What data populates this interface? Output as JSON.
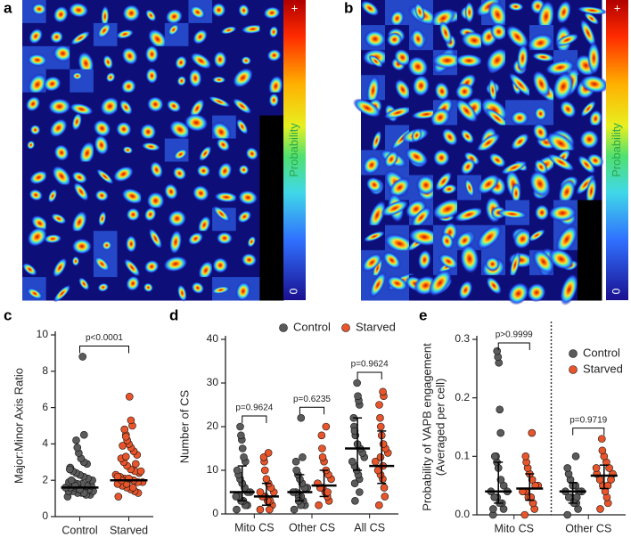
{
  "heatmaps": [
    {
      "label": "a",
      "colorbar_top": "+",
      "colorbar_title": "Probability",
      "colorbar_bottom": "0"
    },
    {
      "label": "b",
      "colorbar_top": "+",
      "colorbar_title": "Probability",
      "colorbar_bottom": "0"
    }
  ],
  "chart_data": [
    {
      "type": "dot",
      "label": "c",
      "ylabel": [
        "Major:Minor Axis Ratio"
      ],
      "categories": [
        "Control",
        "Starved"
      ],
      "ylim": [
        0,
        10
      ],
      "yticks": [
        0,
        2,
        4,
        6,
        8,
        10
      ],
      "groups": [
        {
          "color": "#5b5b5b",
          "median": 1.6,
          "values": [
            1.1,
            1.2,
            1.2,
            1.3,
            1.3,
            1.4,
            1.4,
            1.4,
            1.5,
            1.5,
            1.5,
            1.6,
            1.6,
            1.6,
            1.7,
            1.7,
            1.8,
            1.8,
            1.9,
            1.9,
            2.0,
            2.1,
            2.2,
            2.3,
            2.4,
            2.5,
            2.7,
            2.9,
            3.0,
            3.2,
            3.5,
            3.8,
            4.2,
            4.5,
            8.8,
            1.3,
            1.5,
            1.7,
            2.0,
            2.6
          ]
        },
        {
          "color": "#e8552b",
          "median": 2.0,
          "values": [
            1.1,
            1.3,
            1.4,
            1.5,
            1.6,
            1.7,
            1.8,
            1.9,
            1.9,
            2.0,
            2.0,
            2.1,
            2.2,
            2.3,
            2.4,
            2.5,
            2.6,
            2.8,
            3.0,
            3.2,
            3.4,
            3.6,
            3.8,
            4.0,
            4.2,
            4.5,
            4.8,
            5.0,
            5.3,
            6.6,
            1.8,
            2.0,
            2.2,
            2.5,
            2.9,
            1.6,
            2.1,
            3.3,
            4.4,
            3.9
          ]
        }
      ],
      "comparisons": [
        "p<0.0001"
      ]
    },
    {
      "type": "dot",
      "label": "d",
      "ylabel": [
        "Number of CS"
      ],
      "categories": [
        "Mito CS",
        "Other CS",
        "All CS"
      ],
      "ylim": [
        0,
        40
      ],
      "yticks": [
        0,
        10,
        20,
        30,
        40
      ],
      "series": [
        {
          "name": "Control",
          "color": "#5b5b5b",
          "medians": [
            5,
            5,
            15
          ],
          "q1": [
            3,
            3,
            10
          ],
          "q3": [
            11,
            9,
            22
          ],
          "values": [
            [
              1,
              2,
              2,
              3,
              3,
              4,
              4,
              5,
              5,
              6,
              7,
              8,
              9,
              10,
              12,
              13,
              15,
              17,
              18,
              20
            ],
            [
              1,
              2,
              3,
              4,
              4,
              5,
              5,
              6,
              6,
              7,
              8,
              9,
              10,
              12,
              13,
              22,
              2,
              3
            ],
            [
              3,
              5,
              8,
              9,
              10,
              11,
              12,
              13,
              14,
              15,
              16,
              18,
              20,
              22,
              25,
              26,
              27,
              30,
              19,
              7
            ]
          ]
        },
        {
          "name": "Starved",
          "color": "#e8552b",
          "medians": [
            4,
            6.5,
            11
          ],
          "q1": [
            2,
            4,
            7
          ],
          "q3": [
            7,
            10,
            19
          ],
          "values": [
            [
              1,
              2,
              3,
              3,
              4,
              4,
              5,
              5,
              6,
              7,
              8,
              10,
              12,
              13,
              14,
              1
            ],
            [
              2,
              3,
              4,
              5,
              6,
              6,
              7,
              8,
              9,
              10,
              12,
              13,
              15,
              18,
              20,
              5
            ],
            [
              2,
              4,
              6,
              8,
              9,
              10,
              12,
              14,
              15,
              16,
              18,
              20,
              22,
              25,
              27,
              28,
              11,
              13
            ]
          ]
        }
      ],
      "comparisons": [
        "p=0.9624",
        "p=0.6235",
        "p=0.9624"
      ]
    },
    {
      "type": "dot",
      "label": "e",
      "ylabel": [
        "Probability of VAPB engagement",
        "(Averaged per cell)"
      ],
      "categories": [
        "Mito CS",
        "Other CS"
      ],
      "divider": true,
      "ylim": [
        0,
        0.3
      ],
      "yticks": [
        {
          "value": 0,
          "label": "0.0"
        },
        0.1,
        0.2,
        0.3
      ],
      "series": [
        {
          "name": "Control",
          "color": "#5b5b5b",
          "medians": [
            0.04,
            0.04
          ],
          "q1": [
            0.02,
            0.02
          ],
          "q3": [
            0.09,
            0.055
          ],
          "values": [
            [
              0,
              0.01,
              0.02,
              0.02,
              0.03,
              0.03,
              0.04,
              0.04,
              0.05,
              0.06,
              0.08,
              0.09,
              0.1,
              0.1,
              0.14,
              0.18,
              0.26,
              0.27,
              0.28,
              0.01
            ],
            [
              0,
              0.01,
              0.02,
              0.02,
              0.03,
              0.03,
              0.04,
              0.04,
              0.04,
              0.05,
              0.05,
              0.06,
              0.07,
              0.08,
              0.1,
              0.03,
              0.02
            ]
          ]
        },
        {
          "name": "Starved",
          "color": "#e8552b",
          "medians": [
            0.045,
            0.067
          ],
          "q1": [
            0.025,
            0.045
          ],
          "q3": [
            0.07,
            0.085
          ],
          "values": [
            [
              0,
              0.01,
              0.02,
              0.03,
              0.03,
              0.04,
              0.04,
              0.05,
              0.05,
              0.06,
              0.07,
              0.08,
              0.09,
              0.1,
              0.14,
              0.02,
              0.03
            ],
            [
              0.01,
              0.02,
              0.03,
              0.04,
              0.05,
              0.06,
              0.07,
              0.07,
              0.08,
              0.09,
              0.1,
              0.11,
              0.13,
              0.08,
              0.06,
              0.05
            ]
          ]
        }
      ],
      "comparisons": [
        "p>0.9999",
        "p=0.9719"
      ]
    }
  ]
}
